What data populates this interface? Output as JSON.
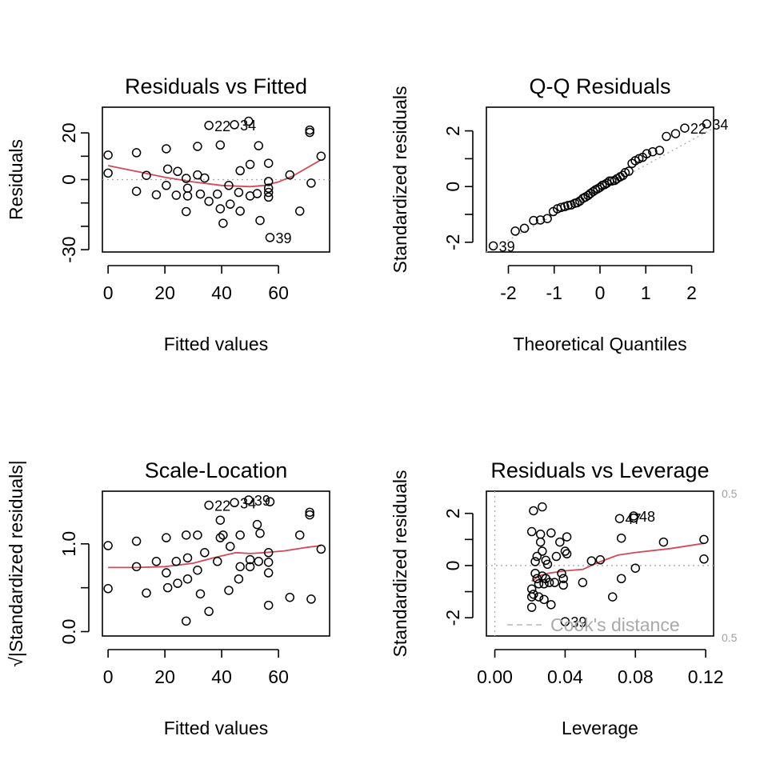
{
  "chart_data": [
    {
      "type": "scatter",
      "title": "Residuals vs Fitted",
      "xlabel": "Fitted values",
      "ylabel": "Residuals",
      "xlim": [
        -2,
        78
      ],
      "ylim": [
        -31,
        31
      ],
      "xticks": [
        "0",
        "20",
        "40",
        "60"
      ],
      "xtick_values": [
        0,
        20,
        40,
        60
      ],
      "yticks": [
        "-30",
        "0",
        "20"
      ],
      "ytick_values": [
        -30,
        0,
        20
      ],
      "reference_line": 0,
      "points": [
        [
          0,
          10.5
        ],
        [
          0,
          2.8
        ],
        [
          10,
          -5
        ],
        [
          10,
          11.5
        ],
        [
          13.5,
          1.8
        ],
        [
          17,
          -6.5
        ],
        [
          20.5,
          -2.5
        ],
        [
          20.5,
          13.2
        ],
        [
          21,
          4.5
        ],
        [
          24,
          -6.7
        ],
        [
          24.5,
          3.5
        ],
        [
          27.5,
          -13.7
        ],
        [
          27.5,
          0.5
        ],
        [
          28,
          -3.7
        ],
        [
          28,
          -7
        ],
        [
          31.5,
          2
        ],
        [
          31.5,
          14.2
        ],
        [
          32.5,
          -6.2
        ],
        [
          34,
          0.7
        ],
        [
          35.5,
          23.2
        ],
        [
          35.5,
          -9.3
        ],
        [
          38.5,
          -6.2
        ],
        [
          39.5,
          -12.5
        ],
        [
          39.5,
          14.8
        ],
        [
          40.5,
          -18.7
        ],
        [
          42.5,
          -2.5
        ],
        [
          43,
          -10.5
        ],
        [
          44.5,
          23.5
        ],
        [
          46,
          -5.5
        ],
        [
          46.5,
          -13.5
        ],
        [
          46.5,
          3.8
        ],
        [
          49.5,
          25
        ],
        [
          50,
          -7
        ],
        [
          50,
          6.5
        ],
        [
          52.5,
          -6
        ],
        [
          53,
          14.5
        ],
        [
          53.5,
          -17.5
        ],
        [
          56.5,
          -7.5
        ],
        [
          56.5,
          -5.5
        ],
        [
          56.5,
          -3.7
        ],
        [
          56.5,
          -0.8
        ],
        [
          56.5,
          7
        ],
        [
          57,
          -24.8
        ],
        [
          64,
          2
        ],
        [
          67.5,
          -13.5
        ],
        [
          71,
          20.2
        ],
        [
          71,
          21.2
        ],
        [
          71.5,
          -1.5
        ],
        [
          75,
          10
        ]
      ],
      "smooth": [
        [
          0,
          6
        ],
        [
          10,
          3.5
        ],
        [
          20,
          1
        ],
        [
          30,
          -1
        ],
        [
          40,
          -2.5
        ],
        [
          50,
          -3
        ],
        [
          55,
          -2.5
        ],
        [
          60,
          -1
        ],
        [
          65,
          1.5
        ],
        [
          70,
          5
        ],
        [
          75,
          8.5
        ]
      ],
      "point_labels": [
        {
          "text": "22",
          "x": 35.5,
          "y": 23.2
        },
        {
          "text": "34",
          "x": 44.5,
          "y": 23.5
        },
        {
          "text": "39",
          "x": 57,
          "y": -24.8
        }
      ]
    },
    {
      "type": "scatter",
      "title": "Q-Q Residuals",
      "xlabel": "Theoretical Quantiles",
      "ylabel": "Standardized residuals",
      "xlim": [
        -2.48,
        2.48
      ],
      "ylim": [
        -2.35,
        2.85
      ],
      "xticks": [
        "-2",
        "-1",
        "0",
        "1",
        "2"
      ],
      "xtick_values": [
        -2,
        -1,
        0,
        1,
        2
      ],
      "yticks": [
        "-2",
        "0",
        "2"
      ],
      "ytick_values": [
        -2,
        0,
        2
      ],
      "reference_line": {
        "x1": -2.48,
        "y1": -2.35,
        "x2": 2.48,
        "y2": 2.1
      },
      "points": [
        [
          -2.33,
          -2.13
        ],
        [
          -1.85,
          -1.6
        ],
        [
          -1.65,
          -1.5
        ],
        [
          -1.45,
          -1.22
        ],
        [
          -1.3,
          -1.2
        ],
        [
          -1.15,
          -1.15
        ],
        [
          -1.02,
          -0.9
        ],
        [
          -0.93,
          -0.8
        ],
        [
          -0.85,
          -0.75
        ],
        [
          -0.77,
          -0.72
        ],
        [
          -0.7,
          -0.68
        ],
        [
          -0.63,
          -0.66
        ],
        [
          -0.55,
          -0.6
        ],
        [
          -0.5,
          -0.58
        ],
        [
          -0.44,
          -0.52
        ],
        [
          -0.37,
          -0.42
        ],
        [
          -0.32,
          -0.38
        ],
        [
          -0.26,
          -0.32
        ],
        [
          -0.21,
          -0.25
        ],
        [
          -0.15,
          -0.18
        ],
        [
          -0.1,
          -0.12
        ],
        [
          -0.05,
          -0.08
        ],
        [
          0,
          -0.03
        ],
        [
          0.05,
          0.04
        ],
        [
          0.1,
          0.07
        ],
        [
          0.15,
          0.12
        ],
        [
          0.21,
          0.2
        ],
        [
          0.26,
          0.2
        ],
        [
          0.32,
          0.22
        ],
        [
          0.37,
          0.28
        ],
        [
          0.44,
          0.35
        ],
        [
          0.5,
          0.4
        ],
        [
          0.55,
          0.5
        ],
        [
          0.63,
          0.55
        ],
        [
          0.7,
          0.83
        ],
        [
          0.77,
          0.93
        ],
        [
          0.85,
          1
        ],
        [
          0.93,
          1.05
        ],
        [
          1.02,
          1.18
        ],
        [
          1.15,
          1.25
        ],
        [
          1.3,
          1.3
        ],
        [
          1.45,
          1.8
        ],
        [
          1.65,
          1.9
        ],
        [
          1.85,
          2.1
        ],
        [
          2.33,
          2.25
        ]
      ],
      "point_labels": [
        {
          "text": "22",
          "x": 1.85,
          "y": 2.1
        },
        {
          "text": "34",
          "x": 2.33,
          "y": 2.25
        },
        {
          "text": "39",
          "x": -2.33,
          "y": -2.13
        }
      ]
    },
    {
      "type": "scatter",
      "title": "Scale-Location",
      "xlabel": "Fitted values",
      "ylabel": "√|Standardized residuals|",
      "xlim": [
        -2,
        78
      ],
      "ylim": [
        -0.05,
        1.6
      ],
      "xticks": [
        "0",
        "20",
        "40",
        "60"
      ],
      "xtick_values": [
        0,
        20,
        40,
        60
      ],
      "yticks": [
        "0.0",
        "1.0"
      ],
      "ytick_values": [
        0,
        1
      ],
      "points": [
        [
          0,
          0.98
        ],
        [
          0,
          0.49
        ],
        [
          10,
          1.03
        ],
        [
          10,
          0.74
        ],
        [
          13.5,
          0.44
        ],
        [
          17,
          0.8
        ],
        [
          20.5,
          0.67
        ],
        [
          20.5,
          1.07
        ],
        [
          21,
          0.5
        ],
        [
          24,
          0.8
        ],
        [
          24.5,
          0.55
        ],
        [
          27.5,
          0.12
        ],
        [
          27.5,
          1.1
        ],
        [
          28,
          0.6
        ],
        [
          28,
          0.84
        ],
        [
          31.5,
          0.7
        ],
        [
          31.5,
          1.1
        ],
        [
          32.5,
          0.43
        ],
        [
          34,
          0.9
        ],
        [
          35.5,
          1.44
        ],
        [
          35.5,
          0.23
        ],
        [
          38.5,
          0.8
        ],
        [
          39.5,
          1.27
        ],
        [
          39.5,
          1.07
        ],
        [
          40.5,
          1.1
        ],
        [
          42.5,
          0.47
        ],
        [
          43,
          0.97
        ],
        [
          44.5,
          1.47
        ],
        [
          46,
          0.6
        ],
        [
          46.5,
          0.74
        ],
        [
          46.5,
          1.1
        ],
        [
          49.5,
          1.5
        ],
        [
          50,
          0.82
        ],
        [
          50,
          0.74
        ],
        [
          52.5,
          1.22
        ],
        [
          53,
          0.8
        ],
        [
          53.5,
          1.12
        ],
        [
          56.5,
          0.3
        ],
        [
          56.5,
          0.67
        ],
        [
          56.5,
          0.79
        ],
        [
          56.5,
          0.9
        ],
        [
          57,
          1.48
        ],
        [
          64,
          0.39
        ],
        [
          67.5,
          1.1
        ],
        [
          71,
          1.33
        ],
        [
          71,
          1.36
        ],
        [
          71.5,
          0.37
        ],
        [
          75,
          0.94
        ]
      ],
      "smooth": [
        [
          0,
          0.73
        ],
        [
          10,
          0.73
        ],
        [
          20,
          0.74
        ],
        [
          30,
          0.78
        ],
        [
          37,
          0.84
        ],
        [
          45,
          0.9
        ],
        [
          50,
          0.89
        ],
        [
          55,
          0.9
        ],
        [
          62,
          0.92
        ],
        [
          70,
          0.96
        ],
        [
          75,
          0.98
        ]
      ],
      "point_labels": [
        {
          "text": "22",
          "x": 35.5,
          "y": 1.44
        },
        {
          "text": "34",
          "x": 44.5,
          "y": 1.47
        },
        {
          "text": "39",
          "x": 49.5,
          "y": 1.5
        }
      ]
    },
    {
      "type": "scatter",
      "title": "Residuals vs Leverage",
      "xlabel": "Leverage",
      "ylabel": "Standardized residuals",
      "xlim": [
        -0.0048,
        0.1245
      ],
      "ylim": [
        -2.7,
        2.85
      ],
      "xticks": [
        "0.00",
        "0.04",
        "0.08",
        "0.12"
      ],
      "xtick_values": [
        0,
        0.04,
        0.08,
        0.12
      ],
      "yticks": [
        "-2",
        "0",
        "2"
      ],
      "ytick_values": [
        -2,
        0,
        2
      ],
      "reference_lines": {
        "h": 0,
        "v": 0
      },
      "points": [
        [
          0.021,
          -1.6
        ],
        [
          0.021,
          -1.2
        ],
        [
          0.021,
          -0.9
        ],
        [
          0.021,
          1.3
        ],
        [
          0.022,
          2.1
        ],
        [
          0.022,
          -1.1
        ],
        [
          0.023,
          -0.3
        ],
        [
          0.023,
          0.15
        ],
        [
          0.024,
          0.35
        ],
        [
          0.024,
          -0.5
        ],
        [
          0.025,
          -0.7
        ],
        [
          0.025,
          -1.2
        ],
        [
          0.026,
          0.9
        ],
        [
          0.026,
          1.2
        ],
        [
          0.027,
          0.55
        ],
        [
          0.027,
          2.25
        ],
        [
          0.027,
          -0.4
        ],
        [
          0.028,
          -0.7
        ],
        [
          0.028,
          -1.3
        ],
        [
          0.029,
          -0.5
        ],
        [
          0.029,
          0.2
        ],
        [
          0.03,
          0.05
        ],
        [
          0.031,
          -0.65
        ],
        [
          0.032,
          -1.5
        ],
        [
          0.032,
          1.25
        ],
        [
          0.034,
          -0.65
        ],
        [
          0.035,
          0.35
        ],
        [
          0.037,
          0.9
        ],
        [
          0.038,
          -0.3
        ],
        [
          0.039,
          -0.75
        ],
        [
          0.039,
          -0.5
        ],
        [
          0.04,
          0.55
        ],
        [
          0.04,
          -2.15
        ],
        [
          0.041,
          0.45
        ],
        [
          0.041,
          1.1
        ],
        [
          0.05,
          -0.65
        ],
        [
          0.055,
          0.18
        ],
        [
          0.06,
          0.22
        ],
        [
          0.067,
          -1.2
        ],
        [
          0.071,
          1.8
        ],
        [
          0.072,
          1.05
        ],
        [
          0.072,
          -0.5
        ],
        [
          0.079,
          1.82
        ],
        [
          0.079,
          1.9
        ],
        [
          0.08,
          -0.1
        ],
        [
          0.096,
          0.9
        ],
        [
          0.119,
          0.25
        ],
        [
          0.119,
          1.0
        ]
      ],
      "smooth": [
        [
          0.021,
          -0.6
        ],
        [
          0.025,
          -0.4
        ],
        [
          0.03,
          -0.3
        ],
        [
          0.04,
          -0.2
        ],
        [
          0.05,
          -0.15
        ],
        [
          0.06,
          0.15
        ],
        [
          0.07,
          0.4
        ],
        [
          0.08,
          0.5
        ],
        [
          0.1,
          0.65
        ],
        [
          0.119,
          0.85
        ]
      ],
      "point_labels": [
        {
          "text": "47",
          "x": 0.071,
          "y": 1.8
        },
        {
          "text": "48",
          "x": 0.079,
          "y": 1.9
        },
        {
          "text": "39",
          "x": 0.04,
          "y": -2.15
        }
      ],
      "legend": {
        "text": "Cook's distance",
        "position": "bottom-right"
      },
      "contour_labels": [
        "0.5",
        "0.5"
      ]
    }
  ]
}
